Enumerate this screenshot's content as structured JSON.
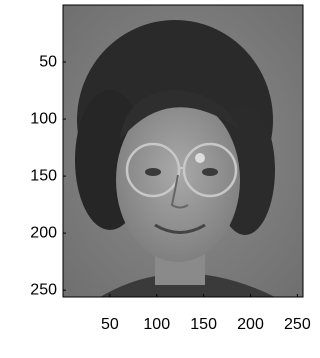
{
  "chart_data": {
    "type": "image",
    "xlim": [
      0,
      256
    ],
    "ylim": [
      0,
      256
    ],
    "yreverse": true,
    "xticks": [
      50,
      100,
      150,
      200,
      250
    ],
    "yticks": [
      50,
      100,
      150,
      200,
      250
    ]
  }
}
